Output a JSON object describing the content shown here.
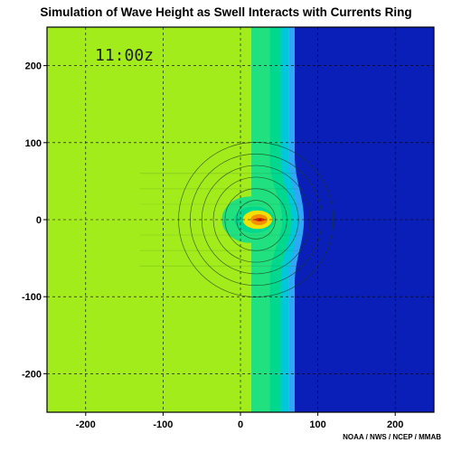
{
  "chart_data": {
    "type": "heatmap",
    "title": "Simulation of Wave Height as Swell Interacts with Currents Ring",
    "time_label": "11:00z",
    "credit": "NOAA / NWS / NCEP / MMAB",
    "xlim": [
      -250,
      250
    ],
    "ylim": [
      -250,
      250
    ],
    "x_ticks": [
      -200,
      -100,
      0,
      100,
      200
    ],
    "y_ticks": [
      200,
      100,
      0,
      -100,
      -200
    ],
    "grid": true,
    "colors": {
      "lime_field": "#a3ec1b",
      "green": "#20e080",
      "green2": "#00d890",
      "cyan": "#00c8d8",
      "light_blue": "#30a8f8",
      "blue": "#1e6ef0",
      "deep_blue": "#0a1fb8",
      "yellow": "#f4e000",
      "orange": "#f49000",
      "red": "#e02000"
    },
    "bands_x": [
      {
        "from": -250,
        "to": 14,
        "color": "lime_field"
      },
      {
        "from": 14,
        "to": 38,
        "color": "green"
      },
      {
        "from": 38,
        "to": 52,
        "color": "green2"
      },
      {
        "from": 52,
        "to": 62,
        "color": "cyan"
      },
      {
        "from": 62,
        "to": 70,
        "color": "light_blue"
      },
      {
        "from": 70,
        "to": 250,
        "color": "deep_blue"
      }
    ],
    "ring_center": [
      20,
      0
    ],
    "ring_radii": [
      25,
      40,
      55,
      70,
      85,
      100
    ]
  }
}
